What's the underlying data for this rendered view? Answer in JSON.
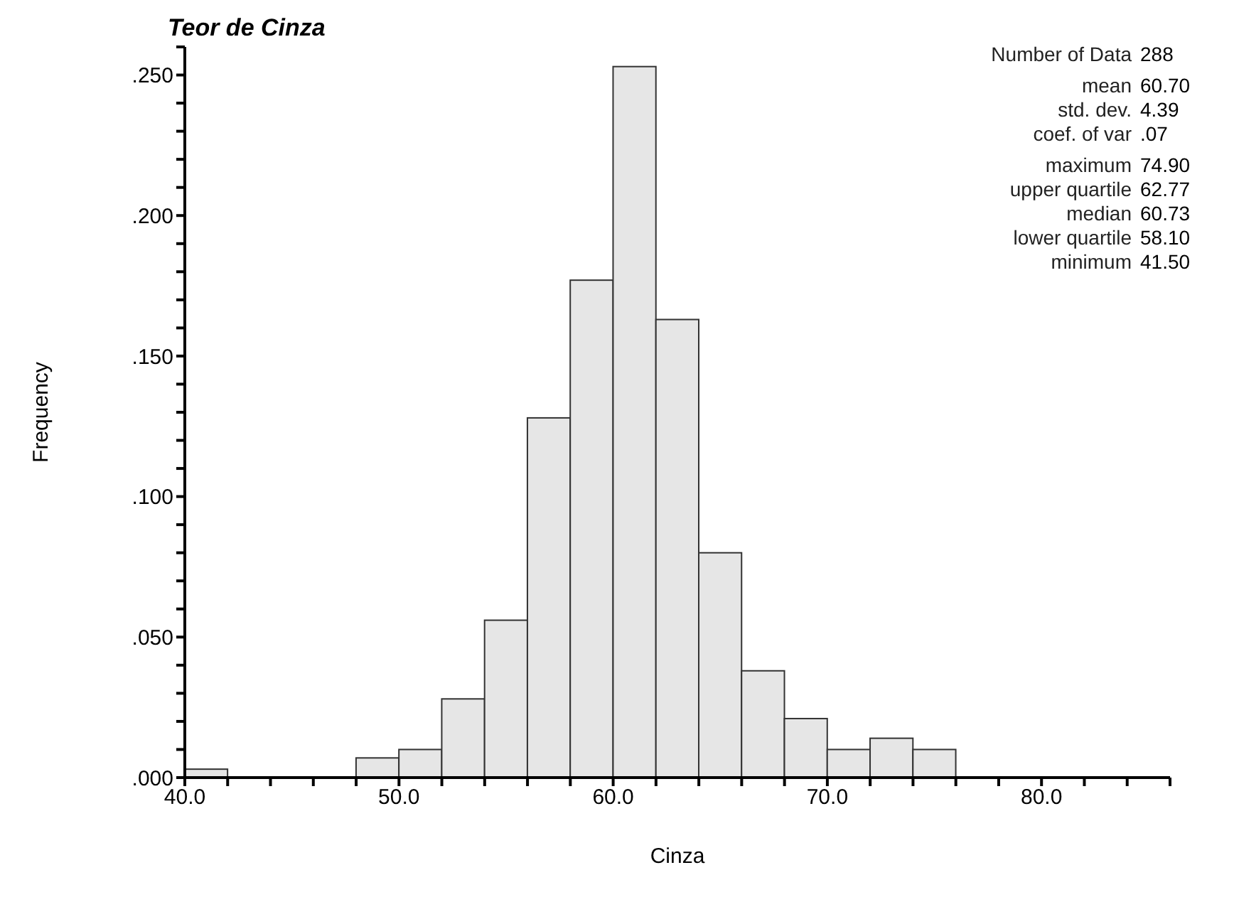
{
  "chart_data": {
    "type": "histogram",
    "title": "Teor de Cinza",
    "xlabel": "Cinza",
    "ylabel": "Frequency",
    "bins": [
      40,
      42,
      44,
      46,
      48,
      50,
      52,
      54,
      56,
      58,
      60,
      62,
      64,
      66,
      68,
      70,
      72,
      74,
      76
    ],
    "values": [
      0.003,
      0,
      0,
      0,
      0.007,
      0.01,
      0.028,
      0.056,
      0.128,
      0.177,
      0.253,
      0.163,
      0.08,
      0.038,
      0.021,
      0.01,
      0.014,
      0.01
    ],
    "color": "#e6e6e6",
    "xlim": [
      40,
      86
    ],
    "xticks": [
      {
        "value": 40,
        "label": "40.0"
      },
      {
        "value": 42,
        "label": null
      },
      {
        "value": 44,
        "label": null
      },
      {
        "value": 46,
        "label": null
      },
      {
        "value": 48,
        "label": null
      },
      {
        "value": 50,
        "label": "50.0"
      },
      {
        "value": 52,
        "label": null
      },
      {
        "value": 54,
        "label": null
      },
      {
        "value": 56,
        "label": null
      },
      {
        "value": 58,
        "label": null
      },
      {
        "value": 60,
        "label": "60.0"
      },
      {
        "value": 62,
        "label": null
      },
      {
        "value": 64,
        "label": null
      },
      {
        "value": 66,
        "label": null
      },
      {
        "value": 68,
        "label": null
      },
      {
        "value": 70,
        "label": "70.0"
      },
      {
        "value": 72,
        "label": null
      },
      {
        "value": 74,
        "label": null
      },
      {
        "value": 76,
        "label": null
      },
      {
        "value": 78,
        "label": null
      },
      {
        "value": 80,
        "label": "80.0"
      },
      {
        "value": 82,
        "label": null
      },
      {
        "value": 84,
        "label": null
      },
      {
        "value": 86,
        "label": null
      }
    ],
    "ylim": [
      0,
      0.26
    ],
    "yticks": [
      {
        "value": 0,
        "label": ".000"
      },
      {
        "value": 0.01,
        "label": null
      },
      {
        "value": 0.02,
        "label": null
      },
      {
        "value": 0.03,
        "label": null
      },
      {
        "value": 0.04,
        "label": null
      },
      {
        "value": 0.05,
        "label": ".050"
      },
      {
        "value": 0.06,
        "label": null
      },
      {
        "value": 0.07,
        "label": null
      },
      {
        "value": 0.08,
        "label": null
      },
      {
        "value": 0.09,
        "label": null
      },
      {
        "value": 0.1,
        "label": ".100"
      },
      {
        "value": 0.11,
        "label": null
      },
      {
        "value": 0.12,
        "label": null
      },
      {
        "value": 0.13,
        "label": null
      },
      {
        "value": 0.14,
        "label": null
      },
      {
        "value": 0.15,
        "label": ".150"
      },
      {
        "value": 0.16,
        "label": null
      },
      {
        "value": 0.17,
        "label": null
      },
      {
        "value": 0.18,
        "label": null
      },
      {
        "value": 0.19,
        "label": null
      },
      {
        "value": 0.2,
        "label": ".200"
      },
      {
        "value": 0.21,
        "label": null
      },
      {
        "value": 0.22,
        "label": null
      },
      {
        "value": 0.23,
        "label": null
      },
      {
        "value": 0.24,
        "label": null
      },
      {
        "value": 0.25,
        "label": ".250"
      },
      {
        "value": 0.26,
        "label": null
      }
    ],
    "grid": false,
    "legend": false,
    "annotations": [
      "Number of Data 288",
      "mean 60.70",
      "std. dev. 4.39",
      "coef. of var .07",
      "maximum 74.90",
      "upper quartile 62.77",
      "median 60.73",
      "lower quartile 58.10",
      "minimum 41.50"
    ]
  }
}
